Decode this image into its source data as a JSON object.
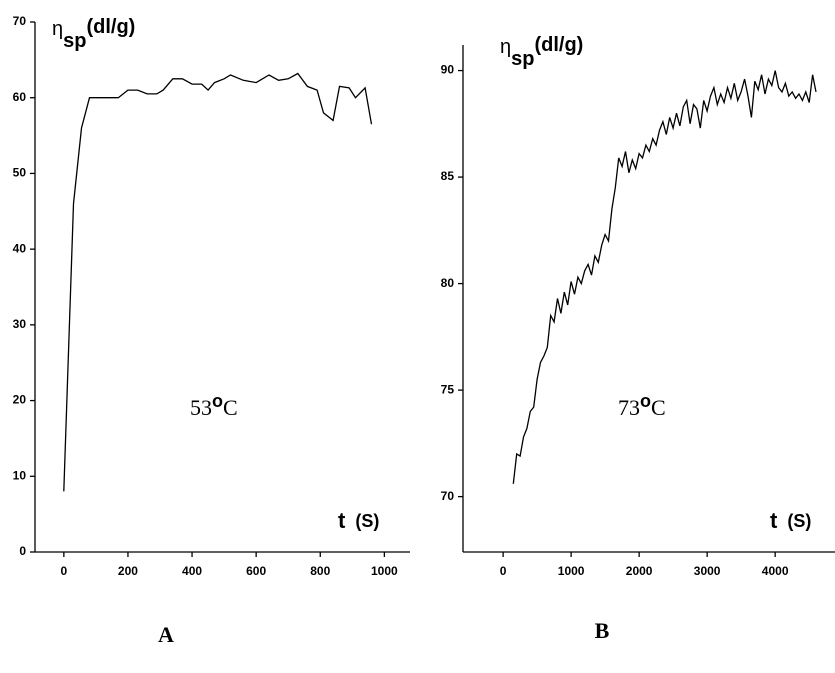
{
  "chart_data": [
    {
      "type": "line",
      "color": "#000000",
      "ylabel": {
        "symbol": "η",
        "subscript": "sp",
        "unit": "(dl/g)"
      },
      "xlabel": {
        "symbol": "t",
        "unit": "(S)"
      },
      "annotation": {
        "value": "53",
        "superscript": "o",
        "unit": "C"
      },
      "panel": "A",
      "xlim": [
        -90,
        1080
      ],
      "ylim": [
        0,
        70
      ],
      "xticks": [
        0,
        200,
        400,
        600,
        800,
        1000
      ],
      "yticks": [
        0,
        10,
        20,
        30,
        40,
        50,
        60,
        70
      ],
      "x": [
        0,
        30,
        55,
        80,
        100,
        150,
        170,
        200,
        230,
        260,
        290,
        310,
        340,
        370,
        400,
        430,
        450,
        470,
        500,
        520,
        560,
        600,
        640,
        670,
        700,
        730,
        760,
        790,
        810,
        840,
        860,
        890,
        910,
        940,
        960
      ],
      "values": [
        8,
        46,
        56,
        60,
        60,
        60,
        60,
        61,
        61,
        60.5,
        60.5,
        61,
        62.5,
        62.5,
        61.8,
        61.8,
        61,
        62,
        62.5,
        63,
        62.3,
        62,
        63,
        62.3,
        62.5,
        63.2,
        61.5,
        61,
        58,
        57,
        61.5,
        61.3,
        60,
        61.3,
        56.5
      ]
    },
    {
      "type": "line",
      "color": "#000000",
      "ylabel": {
        "symbol": "η",
        "subscript": "sp",
        "unit": "(dl/g)"
      },
      "xlabel": {
        "symbol": "t",
        "unit": "(S)"
      },
      "annotation": {
        "value": "73",
        "superscript": "o",
        "unit": "C"
      },
      "panel": "B",
      "xlim": [
        -590,
        4880
      ],
      "ylim": [
        67.4,
        91.2
      ],
      "xticks": [
        0,
        1000,
        2000,
        3000,
        4000
      ],
      "yticks": [
        70,
        75,
        80,
        85,
        90
      ],
      "x": [
        150,
        200,
        250,
        300,
        350,
        400,
        450,
        500,
        550,
        600,
        650,
        700,
        750,
        800,
        850,
        900,
        950,
        1000,
        1050,
        1100,
        1150,
        1200,
        1250,
        1300,
        1350,
        1400,
        1450,
        1500,
        1550,
        1600,
        1650,
        1700,
        1750,
        1800,
        1850,
        1900,
        1950,
        2000,
        2050,
        2100,
        2150,
        2200,
        2250,
        2300,
        2350,
        2400,
        2450,
        2500,
        2550,
        2600,
        2650,
        2700,
        2750,
        2800,
        2850,
        2900,
        2950,
        3000,
        3050,
        3100,
        3150,
        3200,
        3250,
        3300,
        3350,
        3400,
        3450,
        3500,
        3550,
        3600,
        3650,
        3700,
        3750,
        3800,
        3850,
        3900,
        3950,
        4000,
        4050,
        4100,
        4150,
        4200,
        4250,
        4300,
        4350,
        4400,
        4450,
        4500,
        4550,
        4600
      ],
      "values": [
        70.6,
        72.0,
        71.9,
        72.8,
        73.2,
        74.0,
        74.2,
        75.5,
        76.3,
        76.6,
        77.0,
        78.5,
        78.2,
        79.3,
        78.6,
        79.6,
        79.0,
        80.1,
        79.5,
        80.3,
        80.0,
        80.6,
        80.9,
        80.4,
        81.3,
        81.0,
        81.8,
        82.3,
        82.0,
        83.5,
        84.5,
        85.9,
        85.5,
        86.2,
        85.2,
        85.8,
        85.4,
        86.1,
        85.9,
        86.5,
        86.2,
        86.8,
        86.5,
        87.2,
        87.6,
        87.0,
        87.8,
        87.3,
        88.0,
        87.4,
        88.3,
        88.6,
        87.5,
        88.4,
        88.2,
        87.3,
        88.6,
        88.1,
        88.8,
        89.2,
        88.4,
        88.9,
        88.5,
        89.2,
        88.7,
        89.4,
        88.6,
        89.0,
        89.6,
        88.8,
        87.8,
        89.5,
        89.1,
        89.8,
        88.9,
        89.6,
        89.3,
        90.0,
        89.2,
        89.0,
        89.4,
        88.8,
        89.0,
        88.7,
        88.9,
        88.6,
        89.0,
        88.5,
        89.8,
        89.0
      ]
    }
  ]
}
